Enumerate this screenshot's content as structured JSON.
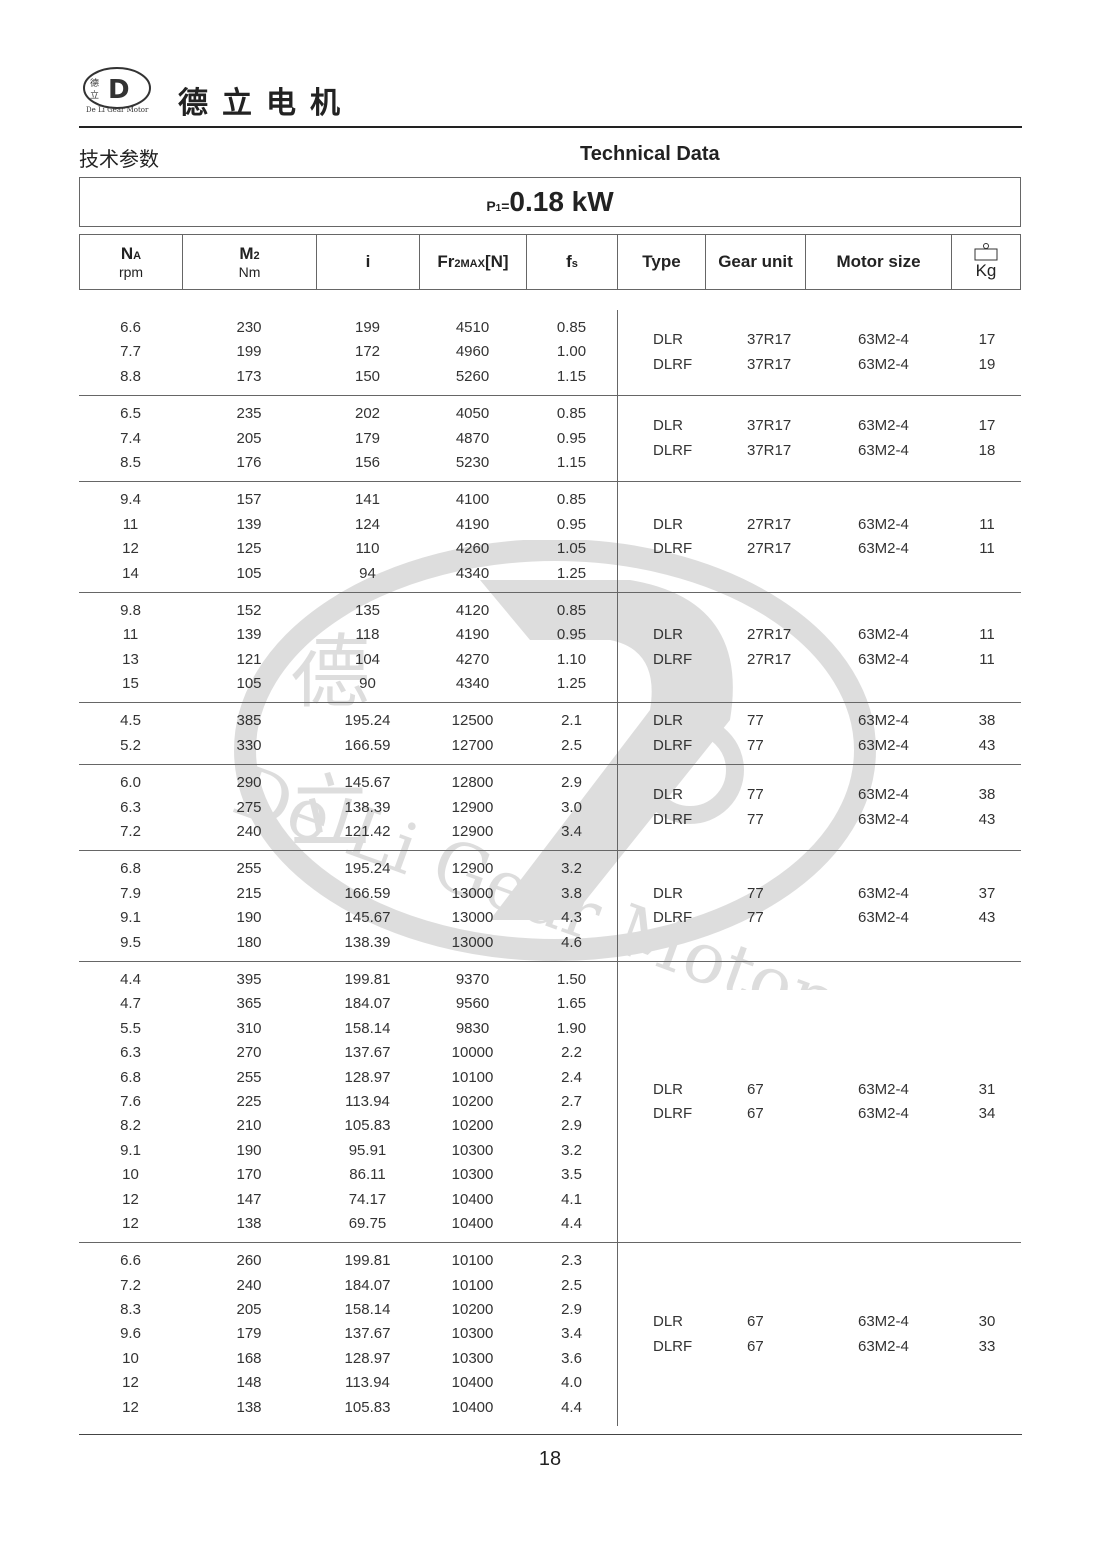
{
  "header": {
    "brand": "德立电机",
    "logo_text": "De Li Gear Motor",
    "cn_title": "技术参数",
    "en_title": "Technical Data"
  },
  "power": {
    "label": "P",
    "sub": "1",
    "eq": "=",
    "value": "0.18 kW"
  },
  "columns": [
    {
      "main": "N",
      "sub": "A",
      "unit": "rpm"
    },
    {
      "main": "M",
      "sub": "2",
      "unit": "Nm"
    },
    {
      "main": "i"
    },
    {
      "main": "Fr",
      "sub": "2MAX",
      "suffix": "[N]"
    },
    {
      "main": "f",
      "sub": "s"
    },
    {
      "main": "Type"
    },
    {
      "main": "Gear unit"
    },
    {
      "main": "Motor size"
    },
    {
      "main": "",
      "unit": "Kg",
      "icon": "weight-icon"
    }
  ],
  "groups": [
    {
      "rows": [
        [
          "6.6",
          "230",
          "199",
          "4510",
          "0.85"
        ],
        [
          "7.7",
          "199",
          "172",
          "4960",
          "1.00"
        ],
        [
          "8.8",
          "173",
          "150",
          "5260",
          "1.15"
        ]
      ],
      "types": [
        [
          "DLR",
          "37R17",
          "63M2-4",
          "17"
        ],
        [
          "DLRF",
          "37R17",
          "63M2-4",
          "19"
        ]
      ]
    },
    {
      "rows": [
        [
          "6.5",
          "235",
          "202",
          "4050",
          "0.85"
        ],
        [
          "7.4",
          "205",
          "179",
          "4870",
          "0.95"
        ],
        [
          "8.5",
          "176",
          "156",
          "5230",
          "1.15"
        ]
      ],
      "types": [
        [
          "DLR",
          "37R17",
          "63M2-4",
          "17"
        ],
        [
          "DLRF",
          "37R17",
          "63M2-4",
          "18"
        ]
      ]
    },
    {
      "rows": [
        [
          "9.4",
          "157",
          "141",
          "4100",
          "0.85"
        ],
        [
          "11",
          "139",
          "124",
          "4190",
          "0.95"
        ],
        [
          "12",
          "125",
          "110",
          "4260",
          "1.05"
        ],
        [
          "14",
          "105",
          "94",
          "4340",
          "1.25"
        ]
      ],
      "types": [
        [
          "DLR",
          "27R17",
          "63M2-4",
          "11"
        ],
        [
          "DLRF",
          "27R17",
          "63M2-4",
          "11"
        ]
      ]
    },
    {
      "rows": [
        [
          "9.8",
          "152",
          "135",
          "4120",
          "0.85"
        ],
        [
          "11",
          "139",
          "118",
          "4190",
          "0.95"
        ],
        [
          "13",
          "121",
          "104",
          "4270",
          "1.10"
        ],
        [
          "15",
          "105",
          "90",
          "4340",
          "1.25"
        ]
      ],
      "types": [
        [
          "DLR",
          "27R17",
          "63M2-4",
          "11"
        ],
        [
          "DLRF",
          "27R17",
          "63M2-4",
          "11"
        ]
      ]
    },
    {
      "rows": [
        [
          "4.5",
          "385",
          "195.24",
          "12500",
          "2.1"
        ],
        [
          "5.2",
          "330",
          "166.59",
          "12700",
          "2.5"
        ]
      ],
      "types": [
        [
          "DLR",
          "77",
          "63M2-4",
          "38"
        ],
        [
          "DLRF",
          "77",
          "63M2-4",
          "43"
        ]
      ]
    },
    {
      "rows": [
        [
          "6.0",
          "290",
          "145.67",
          "12800",
          "2.9"
        ],
        [
          "6.3",
          "275",
          "138.39",
          "12900",
          "3.0"
        ],
        [
          "7.2",
          "240",
          "121.42",
          "12900",
          "3.4"
        ]
      ],
      "types": [
        [
          "DLR",
          "77",
          "63M2-4",
          "38"
        ],
        [
          "DLRF",
          "77",
          "63M2-4",
          "43"
        ]
      ]
    },
    {
      "rows": [
        [
          "6.8",
          "255",
          "195.24",
          "12900",
          "3.2"
        ],
        [
          "7.9",
          "215",
          "166.59",
          "13000",
          "3.8"
        ],
        [
          "9.1",
          "190",
          "145.67",
          "13000",
          "4.3"
        ],
        [
          "9.5",
          "180",
          "138.39",
          "13000",
          "4.6"
        ]
      ],
      "types": [
        [
          "DLR",
          "77",
          "63M2-4",
          "37"
        ],
        [
          "DLRF",
          "77",
          "63M2-4",
          "43"
        ]
      ]
    },
    {
      "rows": [
        [
          "4.4",
          "395",
          "199.81",
          "9370",
          "1.50"
        ],
        [
          "4.7",
          "365",
          "184.07",
          "9560",
          "1.65"
        ],
        [
          "5.5",
          "310",
          "158.14",
          "9830",
          "1.90"
        ],
        [
          "6.3",
          "270",
          "137.67",
          "10000",
          "2.2"
        ],
        [
          "6.8",
          "255",
          "128.97",
          "10100",
          "2.4"
        ],
        [
          "7.6",
          "225",
          "113.94",
          "10200",
          "2.7"
        ],
        [
          "8.2",
          "210",
          "105.83",
          "10200",
          "2.9"
        ],
        [
          "9.1",
          "190",
          "95.91",
          "10300",
          "3.2"
        ],
        [
          "10",
          "170",
          "86.11",
          "10300",
          "3.5"
        ],
        [
          "12",
          "147",
          "74.17",
          "10400",
          "4.1"
        ],
        [
          "12",
          "138",
          "69.75",
          "10400",
          "4.4"
        ]
      ],
      "types": [
        [
          "DLR",
          "67",
          "63M2-4",
          "31"
        ],
        [
          "DLRF",
          "67",
          "63M2-4",
          "34"
        ]
      ]
    },
    {
      "rows": [
        [
          "6.6",
          "260",
          "199.81",
          "10100",
          "2.3"
        ],
        [
          "7.2",
          "240",
          "184.07",
          "10100",
          "2.5"
        ],
        [
          "8.3",
          "205",
          "158.14",
          "10200",
          "2.9"
        ],
        [
          "9.6",
          "179",
          "137.67",
          "10300",
          "3.4"
        ],
        [
          "10",
          "168",
          "128.97",
          "10300",
          "3.6"
        ],
        [
          "12",
          "148",
          "113.94",
          "10400",
          "4.0"
        ],
        [
          "12",
          "138",
          "105.83",
          "10400",
          "4.4"
        ]
      ],
      "types": [
        [
          "DLR",
          "67",
          "63M2-4",
          "30"
        ],
        [
          "DLRF",
          "67",
          "63M2-4",
          "33"
        ]
      ]
    }
  ],
  "watermark": {
    "text": "De Li Gear Motor",
    "cn": "德立"
  },
  "footer": {
    "page": "18"
  }
}
